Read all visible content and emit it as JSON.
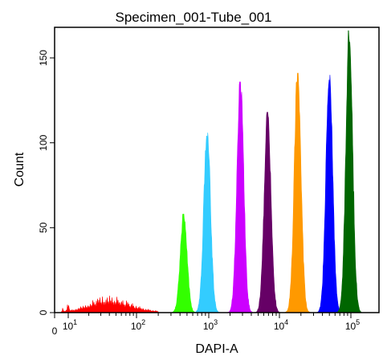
{
  "chart_data": {
    "type": "histogram",
    "title": "Specimen_001-Tube_001",
    "xlabel": "DAPI-A",
    "ylabel": "Count",
    "x_scale": "log",
    "x_tick_labels": [
      "0",
      "10^1",
      "10^2",
      "10^3",
      "10^4",
      "10^5"
    ],
    "x_ticks": [
      0,
      10,
      100,
      1000,
      10000,
      100000
    ],
    "y_ticks": [
      0,
      50,
      100,
      150
    ],
    "ylim": [
      0,
      168
    ],
    "grid": false,
    "series": [
      {
        "color": "#ff0000",
        "center": 40,
        "peak": 10,
        "kind": "broad"
      },
      {
        "color": "#33ff00",
        "center": 450,
        "peak": 58
      },
      {
        "color": "#33ccff",
        "center": 950,
        "peak": 107
      },
      {
        "color": "#cc00ff",
        "center": 2800,
        "peak": 136
      },
      {
        "color": "#660066",
        "center": 6800,
        "peak": 118
      },
      {
        "color": "#ff9900",
        "center": 18000,
        "peak": 141
      },
      {
        "color": "#0000ff",
        "center": 50000,
        "peak": 140
      },
      {
        "color": "#006600",
        "center": 95000,
        "peak": 166
      }
    ]
  }
}
